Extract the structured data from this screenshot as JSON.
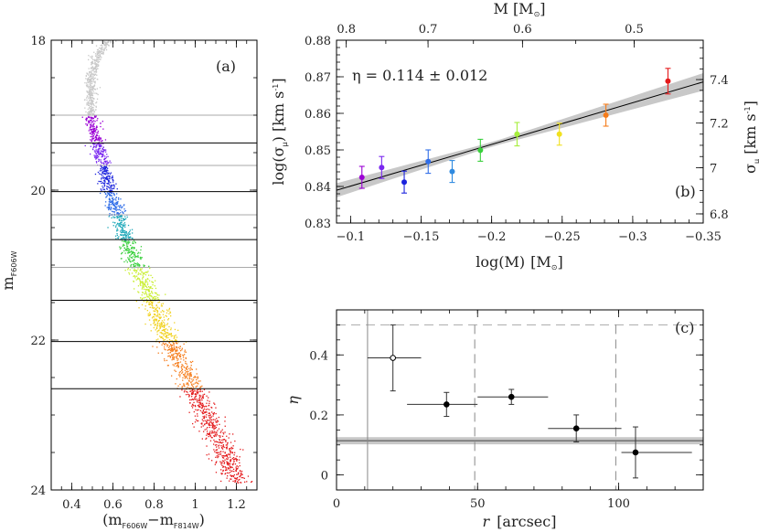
{
  "chart_data": [
    {
      "type": "scatter",
      "panel": "(a)",
      "title": "",
      "xlabel_main": "(m",
      "xlabel_sub1": "F606W",
      "xlabel_dash": "−m",
      "xlabel_sub2": "F814W",
      "xlabel_close": ")",
      "ylabel_main": "m",
      "ylabel_sub": "F606W",
      "xlim": [
        0.3,
        1.3
      ],
      "ylim": [
        24,
        18
      ],
      "xticks": [
        0.4,
        0.6,
        0.8,
        1.0,
        1.2
      ],
      "xtick_labels": [
        "0.4",
        "0.6",
        "0.8",
        "1",
        "1.2"
      ],
      "yticks": [
        18,
        20,
        22,
        24
      ],
      "ytick_labels": [
        "18",
        "20",
        "22",
        "24"
      ],
      "bin_boundaries": [
        19.0,
        19.37,
        19.67,
        20.02,
        20.33,
        20.66,
        21.03,
        21.47,
        22.02,
        22.65
      ],
      "boundary_colors": [
        "#aaaaaa",
        "#000000",
        "#aaaaaa",
        "#000000",
        "#aaaaaa",
        "#000000",
        "#aaaaaa",
        "#000000",
        "#000000",
        "#000000"
      ],
      "bin_colors": [
        "#9b00d4",
        "#7a28f0",
        "#1a22dd",
        "#2f6de8",
        "#1ba7b8",
        "#39cf3c",
        "#c8ee2c",
        "#f1d11e",
        "#f57c1a",
        "#e41a1c"
      ],
      "ridge": [
        [
          18.0,
          0.58
        ],
        [
          18.2,
          0.52
        ],
        [
          18.5,
          0.49
        ],
        [
          19.0,
          0.49
        ],
        [
          19.5,
          0.53
        ],
        [
          20.0,
          0.58
        ],
        [
          20.5,
          0.64
        ],
        [
          21.0,
          0.71
        ],
        [
          21.5,
          0.79
        ],
        [
          22.0,
          0.87
        ],
        [
          22.5,
          0.96
        ],
        [
          23.0,
          1.05
        ],
        [
          23.5,
          1.14
        ],
        [
          23.9,
          1.2
        ]
      ]
    },
    {
      "type": "scatter",
      "panel": "(b)",
      "xlabel": "log(M)",
      "xlabel_unit": "[M",
      "xlabel_sun": "⊙",
      "xlabel_close": "]",
      "ylabel": "log(σ",
      "ylabel_sub": "μ",
      "ylabel_unit": ") [km s",
      "ylabel_exp": "-1",
      "ylabel_close": "]",
      "top_xlabel": "M [M",
      "top_xlabel_sun": "⊙",
      "top_xlabel_close": "]",
      "right_ylabel": "σ",
      "right_ylabel_sub": "μ",
      "right_ylabel_unit": " [km s",
      "right_ylabel_exp": "-1",
      "right_ylabel_close": "]",
      "annotation": "η = 0.114 ± 0.012",
      "xlim": [
        -0.09,
        -0.35
      ],
      "ylim": [
        0.83,
        0.88
      ],
      "xticks": [
        -0.1,
        -0.15,
        -0.2,
        -0.25,
        -0.3,
        -0.35
      ],
      "xtick_labels": [
        "−0.1",
        "−0.15",
        "−0.2",
        "−0.25",
        "−0.3",
        "−0.35"
      ],
      "yticks": [
        0.83,
        0.84,
        0.85,
        0.86,
        0.87,
        0.88
      ],
      "ytick_labels": [
        "0.83",
        "0.84",
        "0.85",
        "0.86",
        "0.87",
        "0.88"
      ],
      "top_ticks": [
        0.8,
        0.7,
        0.6,
        0.5
      ],
      "top_tick_labels": [
        "0.8",
        "0.7",
        "0.6",
        "0.5"
      ],
      "right_ticks": [
        6.8,
        7.0,
        7.2,
        7.4
      ],
      "right_tick_labels": [
        "6.8",
        "7",
        "7.2",
        "7.4"
      ],
      "fit": {
        "slope": -0.114,
        "intercept": 0.8287,
        "slope_err": 0.012
      },
      "points": [
        {
          "x": -0.108,
          "y": 0.8425,
          "err": 0.003,
          "color": "#9b00d4"
        },
        {
          "x": -0.122,
          "y": 0.8452,
          "err": 0.003,
          "color": "#7a28f0"
        },
        {
          "x": -0.138,
          "y": 0.8412,
          "err": 0.003,
          "color": "#1a22dd"
        },
        {
          "x": -0.155,
          "y": 0.8468,
          "err": 0.0032,
          "color": "#2f6de8"
        },
        {
          "x": -0.172,
          "y": 0.8441,
          "err": 0.003,
          "color": "#2f8ae0"
        },
        {
          "x": -0.192,
          "y": 0.8499,
          "err": 0.003,
          "color": "#39cf3c"
        },
        {
          "x": -0.218,
          "y": 0.8543,
          "err": 0.0032,
          "color": "#a6ee3c"
        },
        {
          "x": -0.248,
          "y": 0.8543,
          "err": 0.003,
          "color": "#f1e11e"
        },
        {
          "x": -0.281,
          "y": 0.8595,
          "err": 0.003,
          "color": "#f57c1a"
        },
        {
          "x": -0.325,
          "y": 0.8688,
          "err": 0.0035,
          "color": "#e41a1c"
        }
      ]
    },
    {
      "type": "scatter",
      "panel": "(c)",
      "xlabel": "r",
      "xlabel_unit": "[arcsec]",
      "ylabel": "η",
      "xlim": [
        0,
        130
      ],
      "ylim": [
        -0.05,
        0.55
      ],
      "xticks": [
        0,
        50,
        100
      ],
      "xtick_labels": [
        "0",
        "50",
        "100"
      ],
      "yticks": [
        0,
        0.2,
        0.4
      ],
      "ytick_labels": [
        "0",
        "0.2",
        "0.4"
      ],
      "reference_eta": 0.114,
      "reference_err": 0.012,
      "reference_top": 0.5,
      "solid_vline": 11,
      "dashed_vlines": [
        49,
        99
      ],
      "points": [
        {
          "x": 20,
          "y": 0.39,
          "xerr": [
            11,
            30
          ],
          "yerr": 0.11,
          "open": true
        },
        {
          "x": 39,
          "y": 0.235,
          "xerr": [
            25,
            50
          ],
          "yerr": 0.04,
          "open": false
        },
        {
          "x": 62,
          "y": 0.26,
          "xerr": [
            50,
            75
          ],
          "yerr": 0.025,
          "open": false
        },
        {
          "x": 85,
          "y": 0.155,
          "xerr": [
            75,
            101
          ],
          "yerr": 0.045,
          "open": false
        },
        {
          "x": 106,
          "y": 0.075,
          "xerr": [
            101,
            126
          ],
          "yerr": 0.085,
          "open": false
        }
      ]
    }
  ]
}
